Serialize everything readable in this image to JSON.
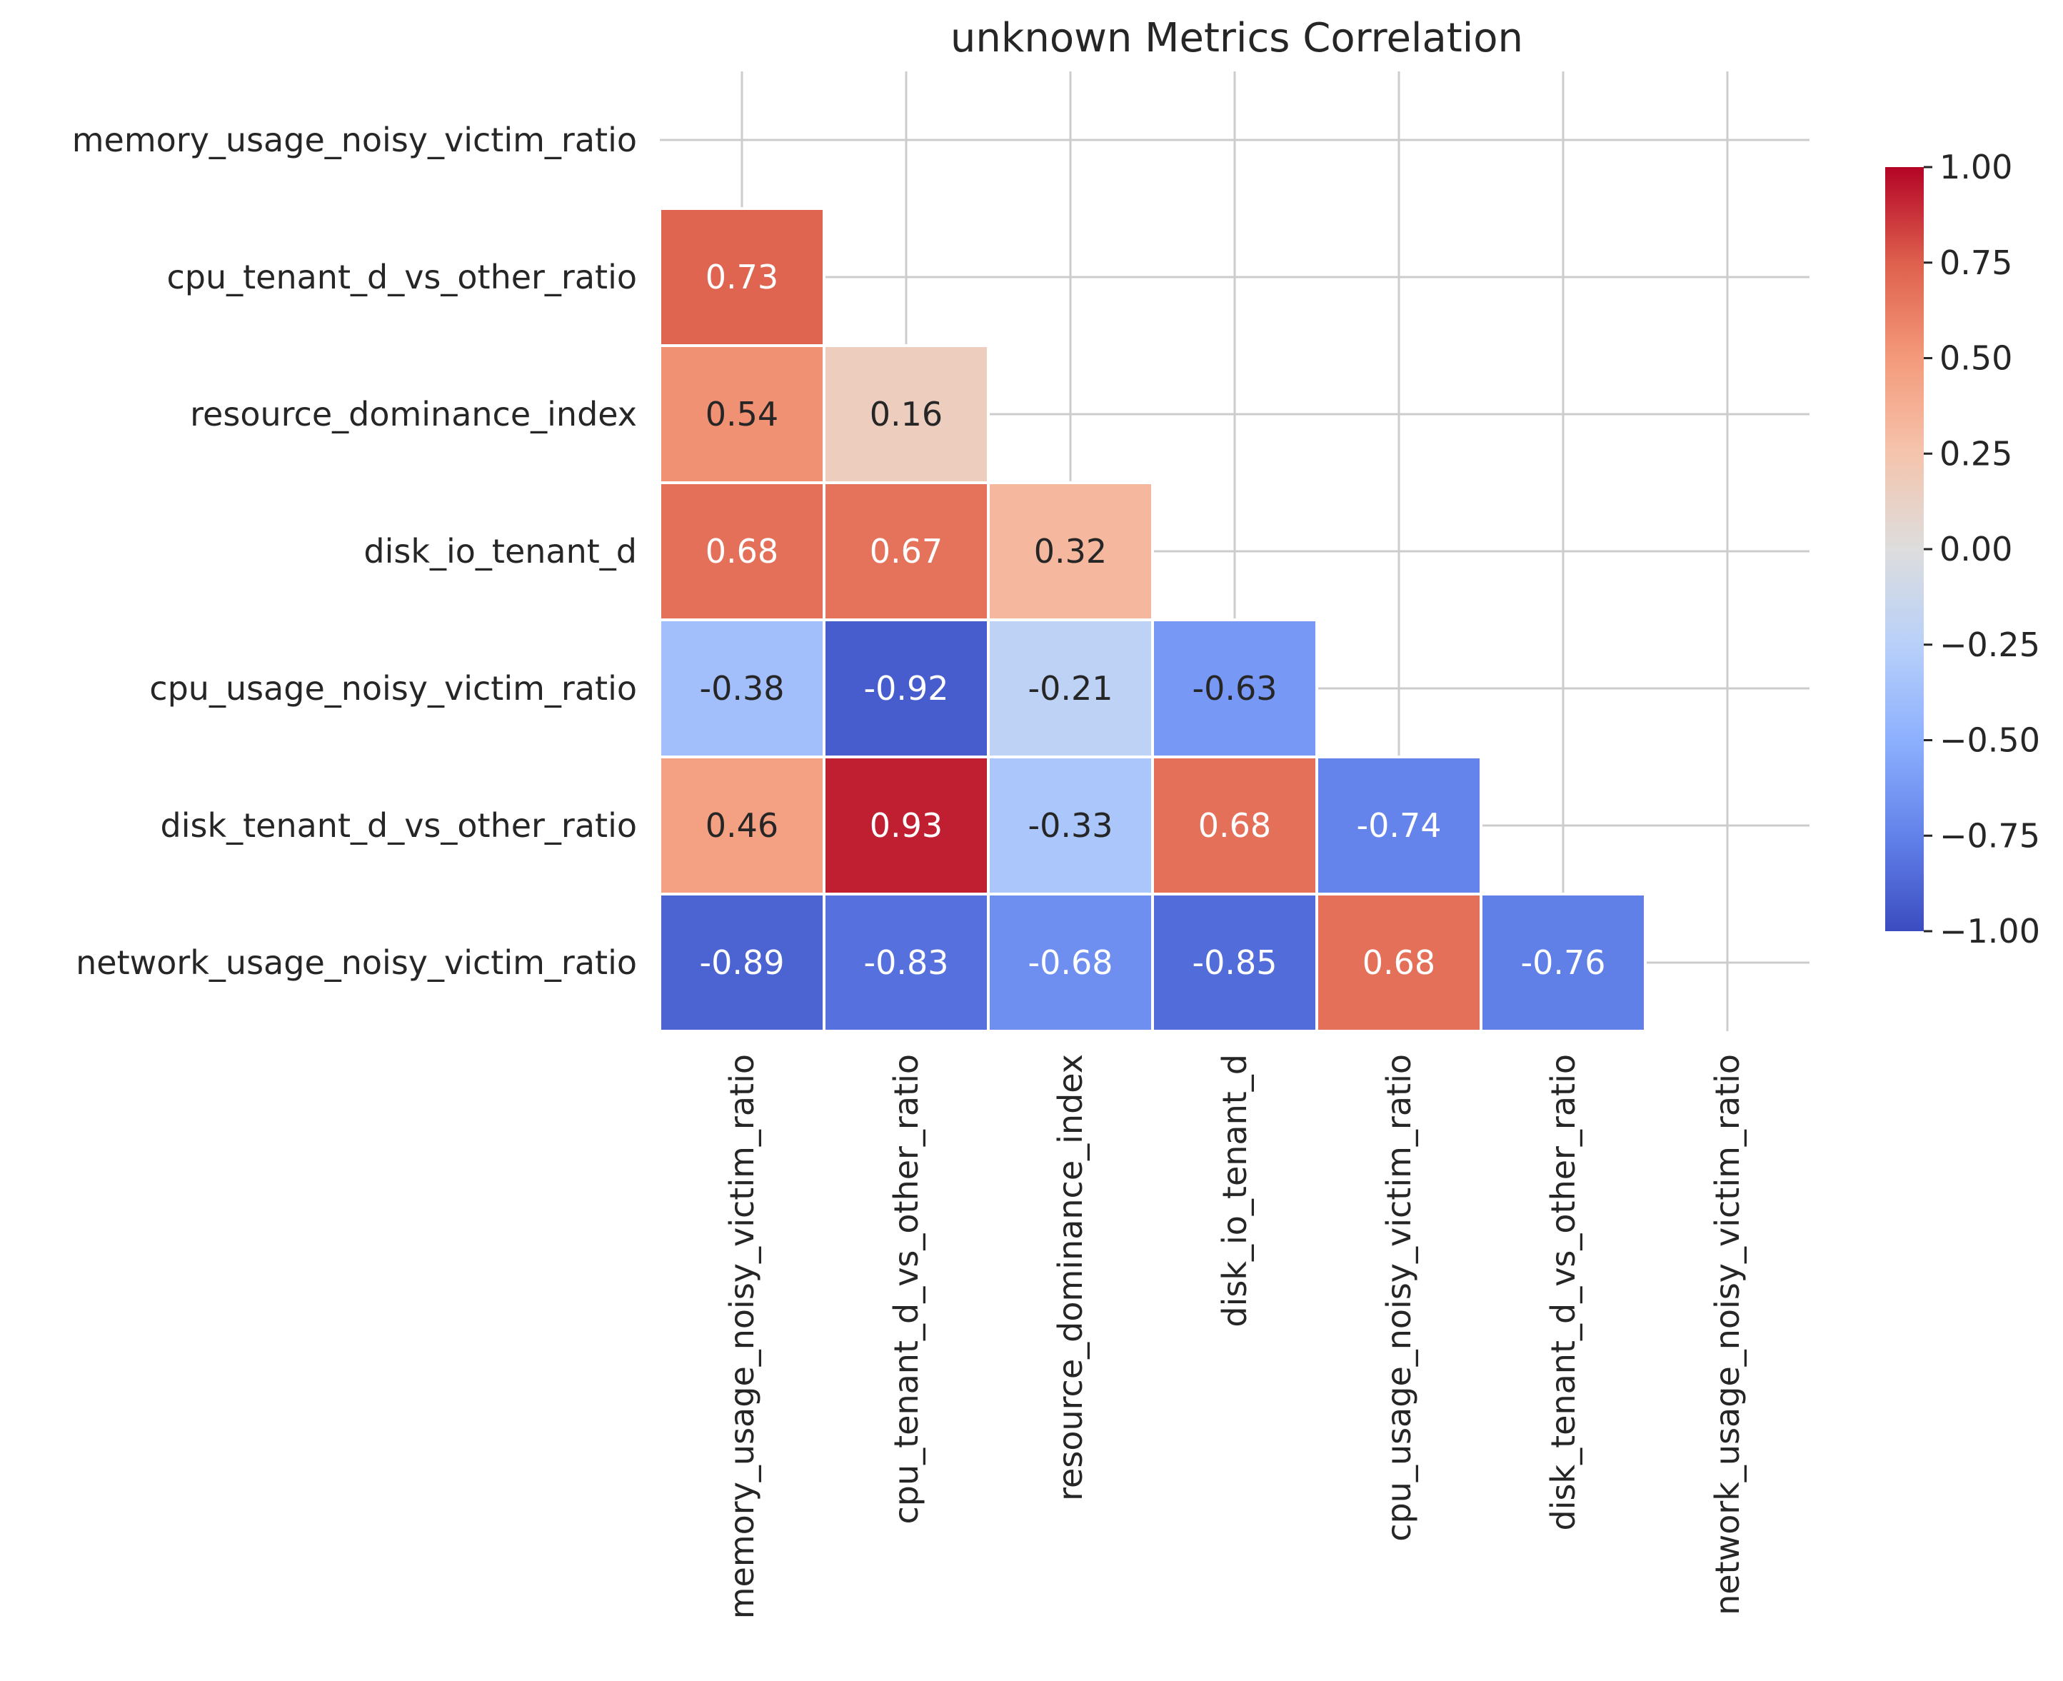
{
  "chart_data": {
    "type": "heatmap",
    "title": "unknown Metrics Correlation",
    "labels": [
      "memory_usage_noisy_victim_ratio",
      "cpu_tenant_d_vs_other_ratio",
      "resource_dominance_index",
      "disk_io_tenant_d",
      "cpu_usage_noisy_victim_ratio",
      "disk_tenant_d_vs_other_ratio",
      "network_usage_noisy_victim_ratio"
    ],
    "mask": "upper-triangle",
    "values": [
      [
        null,
        null,
        null,
        null,
        null,
        null,
        null
      ],
      [
        0.73,
        null,
        null,
        null,
        null,
        null,
        null
      ],
      [
        0.54,
        0.16,
        null,
        null,
        null,
        null,
        null
      ],
      [
        0.68,
        0.67,
        0.32,
        null,
        null,
        null,
        null
      ],
      [
        -0.38,
        -0.92,
        -0.21,
        -0.63,
        null,
        null,
        null
      ],
      [
        0.46,
        0.93,
        -0.33,
        0.68,
        -0.74,
        null,
        null
      ],
      [
        -0.89,
        -0.83,
        -0.68,
        -0.85,
        0.68,
        -0.76,
        null
      ]
    ],
    "annotations": [
      [
        null,
        null,
        null,
        null,
        null,
        null,
        null
      ],
      [
        "0.73",
        null,
        null,
        null,
        null,
        null,
        null
      ],
      [
        "0.54",
        "0.16",
        null,
        null,
        null,
        null,
        null
      ],
      [
        "0.68",
        "0.67",
        "0.32",
        null,
        null,
        null,
        null
      ],
      [
        "-0.38",
        "-0.92",
        "-0.21",
        "-0.63",
        null,
        null,
        null
      ],
      [
        "0.46",
        "0.93",
        "-0.33",
        "0.68",
        "-0.74",
        null,
        null
      ],
      [
        "-0.89",
        "-0.83",
        "-0.68",
        "-0.85",
        "0.68",
        "-0.76",
        null
      ]
    ],
    "colormap": "coolwarm",
    "vmin": -1.0,
    "vmax": 1.0,
    "colorbar_ticks": [
      "1.00",
      "0.75",
      "0.50",
      "0.25",
      "0.00",
      "−0.25",
      "−0.50",
      "−0.75",
      "−1.00"
    ],
    "grid": true
  }
}
